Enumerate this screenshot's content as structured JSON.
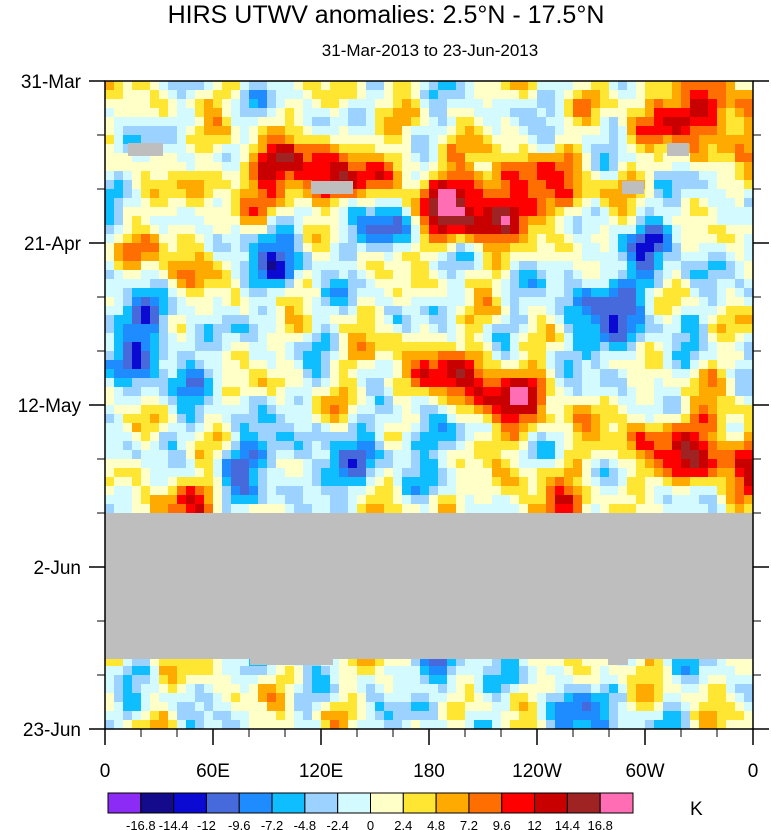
{
  "chart_data": {
    "type": "heatmap",
    "title": "HIRS UTWV anomalies: 2.5°N - 17.5°N",
    "subtitle": "31-Mar-2013 to 23-Jun-2013",
    "xlabel": "",
    "ylabel": "",
    "x_ticks": [
      "0",
      "60E",
      "120E",
      "180",
      "120W",
      "60W",
      "0"
    ],
    "y_ticks": [
      "31-Mar",
      "21-Apr",
      "12-May",
      "2-Jun",
      "23-Jun"
    ],
    "units": "K",
    "missing_data_period": "approx. 28-May-2013 to 12-Jun-2013 (no data, shown grey)",
    "contour_levels": [
      "-16.8",
      "-14.4",
      "-12",
      "-9.6",
      "-7.2",
      "-4.8",
      "-2.4",
      "0",
      "2.4",
      "4.8",
      "7.2",
      "9.6",
      "12",
      "14.4",
      "16.8"
    ],
    "colors": [
      "#8c2bf5",
      "#140a8c",
      "#0a0ad2",
      "#4669dc",
      "#1e8cff",
      "#0fbeff",
      "#9bd2ff",
      "#d2faff",
      "#ffffc8",
      "#ffe632",
      "#ffaa00",
      "#ff6e00",
      "#ff0000",
      "#c80000",
      "#a02323",
      "#ff6eb4"
    ],
    "missing_color": "#bebebe"
  }
}
